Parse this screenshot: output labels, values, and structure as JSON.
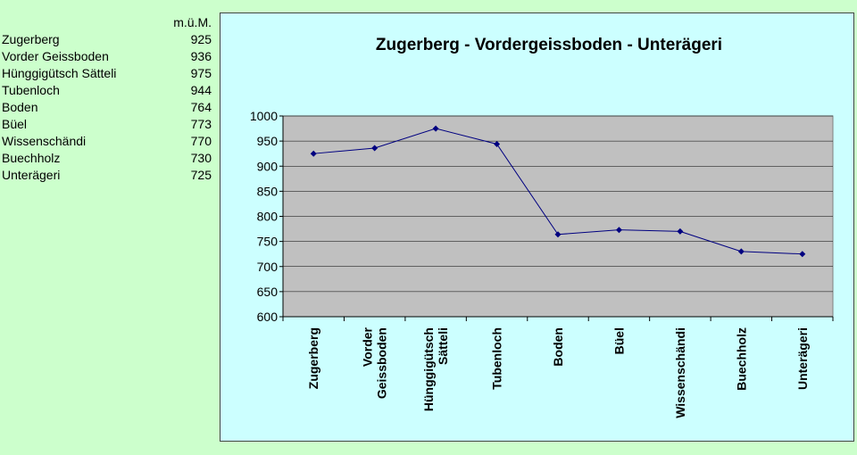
{
  "table": {
    "unit_header": "m.ü.M.",
    "rows": [
      {
        "name": "Zugerberg",
        "value": "925"
      },
      {
        "name": "Vorder Geissboden",
        "value": "936"
      },
      {
        "name": "Hünggigütsch Sätteli",
        "value": "975"
      },
      {
        "name": "Tubenloch",
        "value": "944"
      },
      {
        "name": "Boden",
        "value": "764"
      },
      {
        "name": "Büel",
        "value": "773"
      },
      {
        "name": "Wissenschändi",
        "value": "770"
      },
      {
        "name": "Buechholz",
        "value": "730"
      },
      {
        "name": "Unterägeri",
        "value": "725"
      }
    ]
  },
  "chart_data": {
    "type": "line",
    "title": "Zugerberg - Vordergeissboden - Unterägeri",
    "xlabel": "",
    "ylabel": "",
    "categories": [
      [
        "Zugerberg"
      ],
      [
        "Vorder",
        "Geissboden"
      ],
      [
        "Hünggigütsch",
        "Sätteli"
      ],
      [
        "Tubenloch"
      ],
      [
        "Boden"
      ],
      [
        "Büel"
      ],
      [
        "Wissenschändi"
      ],
      [
        "Buechholz"
      ],
      [
        "Unterägeri"
      ]
    ],
    "series": [
      {
        "values": [
          925,
          936,
          975,
          944,
          764,
          773,
          770,
          730,
          725
        ]
      }
    ],
    "ylim": [
      600,
      1000
    ],
    "yticks": [
      600,
      650,
      700,
      750,
      800,
      850,
      900,
      950,
      1000
    ],
    "grid": true,
    "legend": "none",
    "colors": {
      "plot_bg": "#c0c0c0",
      "chart_bg": "#ccffff",
      "line": "#000080",
      "gridline": "#000000"
    }
  }
}
